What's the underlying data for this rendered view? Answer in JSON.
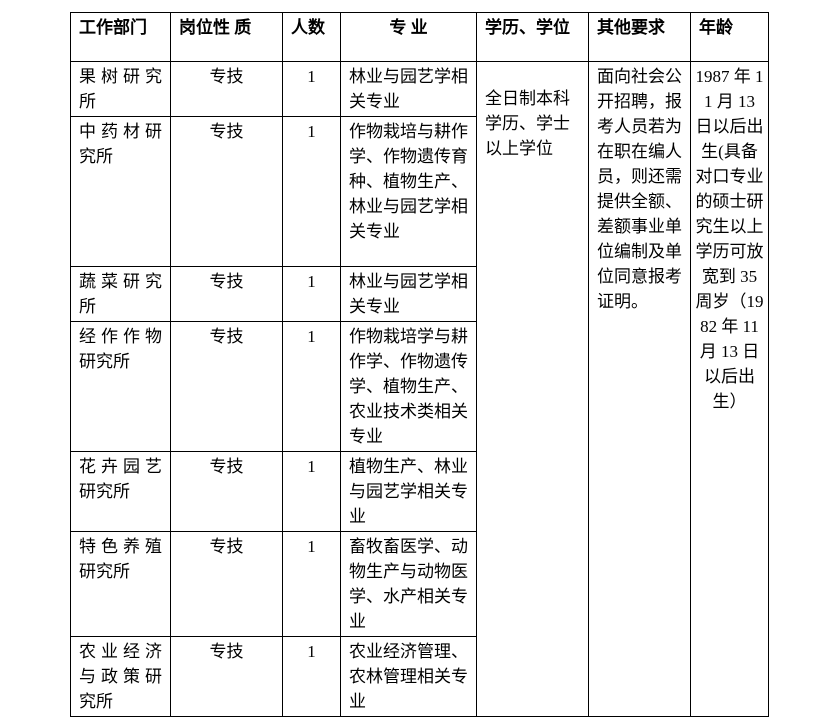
{
  "table": {
    "header": [
      "工作部门",
      "岗位性 质",
      "人数",
      "专 业",
      "学历、学位",
      "其他要求",
      "年龄"
    ],
    "rows": [
      {
        "department": "果树研究所",
        "post_type": "专技",
        "count": 1,
        "major": "林业与园艺学相关专业"
      },
      {
        "department": "中药材研究所",
        "post_type": "专技",
        "count": 1,
        "major": "作物栽培与耕作学、作物遗传育种、植物生产、林业与园艺学相关专业"
      },
      {
        "department": "蔬菜研究所",
        "post_type": "专技",
        "count": 1,
        "major": "林业与园艺学相关专业"
      },
      {
        "department": "经作作物研究所",
        "post_type": "专技",
        "count": 1,
        "major": "作物栽培学与耕作学、作物遗传学、植物生产、农业技术类相关专业"
      },
      {
        "department": "花卉园艺研究所",
        "post_type": "专技",
        "count": 1,
        "major": "植物生产、林业与园艺学相关专业"
      },
      {
        "department": "特色养殖研究所",
        "post_type": "专技",
        "count": 1,
        "major": "畜牧畜医学、动物生产与动物医学、水产相关专业"
      },
      {
        "department": "农业经济与政策研究所",
        "post_type": "专技",
        "count": 1,
        "major": "农业经济管理、农林管理相关专业"
      }
    ],
    "education": "全日制本科学历、学士以上学位",
    "other_requirements": "面向社会公开招聘，报考人员若为在职在编人员，则还需提供全额、差额事业单位编制及单位同意报考证明。",
    "age": "1987 年 11 月 13 日以后出生(具备对口专业的硕士研究生以上学历可放宽到 35 周岁（1982 年 11 月 13 日以后出生）"
  }
}
